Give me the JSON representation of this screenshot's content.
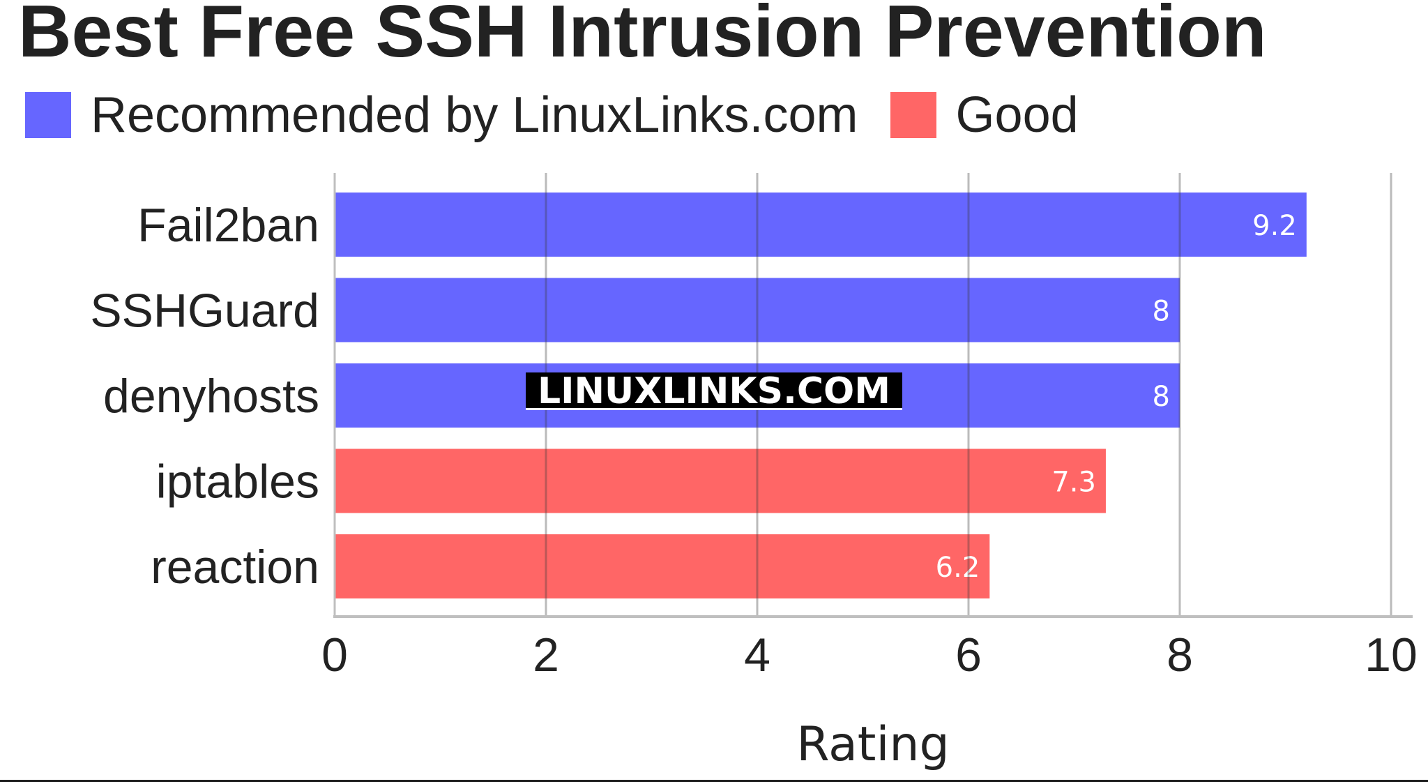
{
  "chart_data": {
    "type": "bar",
    "orientation": "horizontal",
    "title": "Best Free SSH Intrusion Prevention",
    "xlabel": "Rating",
    "ylabel": "",
    "xlim": [
      0,
      10
    ],
    "x_ticks": [
      "0",
      "2",
      "4",
      "6",
      "8",
      "10"
    ],
    "grid": true,
    "legend_position": "top-left",
    "legend": [
      {
        "label": "Recommended by LinuxLinks.com",
        "color": "#6666ff"
      },
      {
        "label": "Good",
        "color": "#ff6666"
      }
    ],
    "categories": [
      "Fail2ban",
      "SSHGuard",
      "denyhosts",
      "iptables",
      "reaction"
    ],
    "values": [
      9.2,
      8,
      8,
      7.3,
      6.2
    ],
    "value_labels": [
      "9.2",
      "8",
      "8",
      "7.3",
      "6.2"
    ],
    "bar_colors": [
      "#6666ff",
      "#6666ff",
      "#6666ff",
      "#ff6666",
      "#ff6666"
    ]
  },
  "watermark": "LINUXLINKS.COM"
}
